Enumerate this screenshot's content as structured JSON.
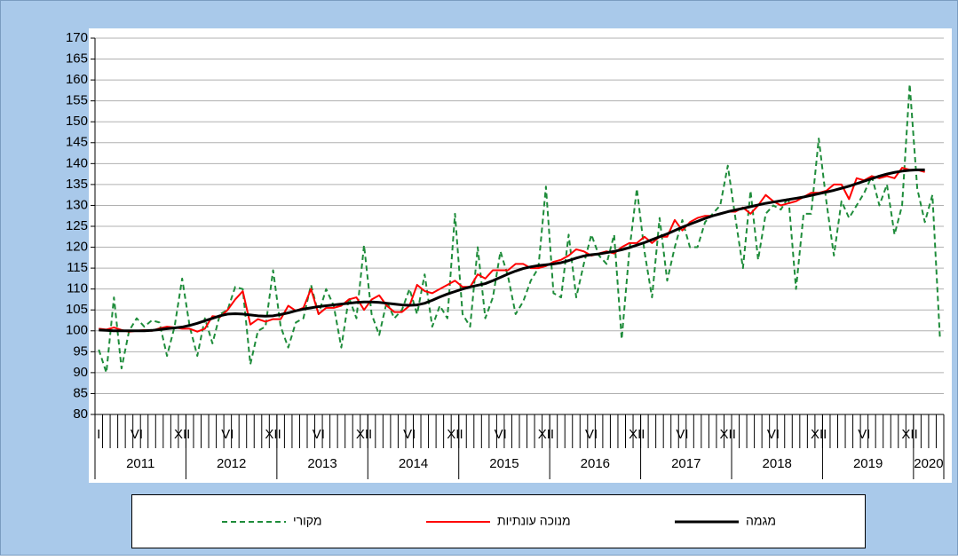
{
  "chart_data": {
    "type": "line",
    "categories": [
      "I",
      null,
      null,
      null,
      null,
      "VI",
      null,
      null,
      null,
      null,
      null,
      "XII",
      null,
      null,
      null,
      null,
      null,
      "VI",
      null,
      null,
      null,
      null,
      null,
      "XII",
      null,
      null,
      null,
      null,
      null,
      "VI",
      null,
      null,
      null,
      null,
      null,
      "XII",
      null,
      null,
      null,
      null,
      null,
      "VI",
      null,
      null,
      null,
      null,
      null,
      "XII",
      null,
      null,
      null,
      null,
      null,
      "VI",
      null,
      null,
      null,
      null,
      null,
      "XII",
      null,
      null,
      null,
      null,
      null,
      "VI",
      null,
      null,
      null,
      null,
      null,
      "XII",
      null,
      null,
      null,
      null,
      null,
      "VI",
      null,
      null,
      null,
      null,
      null,
      "XII",
      null,
      null,
      null,
      null,
      null,
      "VI",
      null,
      null,
      null,
      null,
      null,
      "XII",
      null,
      null,
      null,
      null,
      null,
      "VI",
      null,
      null,
      null,
      null,
      null,
      "XII",
      null,
      null,
      null,
      null
    ],
    "x_groups": [
      "2011",
      "2012",
      "2013",
      "2014",
      "2015",
      "2016",
      "2017",
      "2018",
      "2019",
      "2020"
    ],
    "series": [
      {
        "name": "מקורי",
        "color": "#1e8c3a",
        "dash": true,
        "values": [
          95.5,
          90,
          108,
          91,
          100,
          103,
          101,
          102.5,
          102,
          94,
          101,
          112.5,
          101,
          94,
          103,
          97,
          104,
          105,
          110.5,
          110,
          92,
          100,
          101,
          114.5,
          101,
          96,
          102,
          103,
          111,
          104,
          110,
          106,
          96,
          108,
          103,
          120.5,
          104,
          99,
          107,
          103,
          105,
          110,
          104,
          113.5,
          101,
          106,
          103,
          128,
          104,
          101,
          120,
          103,
          108,
          119,
          113,
          104,
          107,
          112,
          115,
          134.5,
          109,
          108,
          123,
          108,
          116,
          123,
          118,
          116,
          123,
          98,
          119,
          134,
          119,
          108,
          127,
          112,
          120,
          126.5,
          120,
          120,
          126,
          128,
          130,
          139.5,
          127,
          115,
          133.5,
          117,
          128,
          130,
          129,
          132,
          110,
          128,
          128,
          146,
          131,
          118,
          131,
          127,
          130,
          133,
          137,
          130,
          135,
          123,
          130,
          159,
          134,
          126,
          132.5,
          98
        ]
      },
      {
        "name": "מנוכה עונתיות",
        "color": "#ff0000",
        "dash": false,
        "values": [
          100.5,
          100.3,
          100.8,
          100.2,
          99.8,
          100,
          100.2,
          100,
          100.6,
          101,
          100.8,
          100.5,
          100.5,
          99.8,
          100.5,
          103.5,
          103.3,
          105,
          107.5,
          109.5,
          101.5,
          102.8,
          102.2,
          102.8,
          102.8,
          106,
          104.8,
          105.5,
          110,
          104,
          105.5,
          105.5,
          106,
          107.5,
          108,
          105,
          107.5,
          108.5,
          106,
          104.5,
          104.5,
          106,
          111,
          109.5,
          109,
          110,
          111,
          112,
          110.5,
          110.5,
          113.5,
          112.5,
          114.5,
          114.5,
          114.5,
          116,
          116,
          115,
          115,
          115.5,
          116.5,
          117,
          118,
          119.5,
          119,
          118,
          118.5,
          119,
          118.5,
          120,
          121,
          121,
          122.5,
          121,
          122.5,
          122.5,
          126.5,
          124,
          126,
          127,
          127.5,
          127.5,
          128,
          128.5,
          128.5,
          129.5,
          128,
          130,
          132.5,
          131,
          130,
          130.5,
          131,
          132,
          133,
          133,
          133.5,
          135,
          135,
          131.5,
          136.5,
          136,
          137,
          136.5,
          137,
          136.5,
          139,
          138.5,
          138.5,
          138,
          null,
          null
        ]
      },
      {
        "name": "מגמה",
        "color": "#000000",
        "dash": false,
        "values": [
          100.2,
          100.1,
          100,
          100,
          100,
          100,
          100,
          100.1,
          100.3,
          100.5,
          100.7,
          100.9,
          101.3,
          101.8,
          102.4,
          103,
          103.6,
          104,
          104.1,
          104,
          103.8,
          103.6,
          103.5,
          103.6,
          103.9,
          104.3,
          104.8,
          105.2,
          105.5,
          105.8,
          106,
          106.2,
          106.4,
          106.6,
          106.8,
          106.9,
          106.9,
          106.8,
          106.6,
          106.4,
          106.2,
          106.1,
          106.2,
          106.6,
          107.3,
          108.1,
          108.8,
          109.4,
          110,
          110.5,
          110.9,
          111.3,
          112,
          112.8,
          113.6,
          114.3,
          114.9,
          115.3,
          115.6,
          115.8,
          116,
          116.3,
          116.8,
          117.4,
          117.9,
          118.2,
          118.4,
          118.7,
          119,
          119.4,
          119.9,
          120.5,
          121.1,
          121.8,
          122.5,
          123.2,
          124,
          124.8,
          125.5,
          126.2,
          126.9,
          127.5,
          128,
          128.5,
          128.9,
          129.3,
          129.7,
          130.1,
          130.5,
          130.8,
          131.1,
          131.4,
          131.7,
          132,
          132.4,
          132.8,
          133.2,
          133.6,
          134.1,
          134.6,
          135.2,
          135.8,
          136.4,
          137,
          137.5,
          137.9,
          138.2,
          138.4,
          138.5,
          138.5,
          null,
          null
        ]
      }
    ],
    "ylim": [
      80,
      170
    ],
    "yticks": [
      80,
      85,
      90,
      95,
      100,
      105,
      110,
      115,
      120,
      125,
      130,
      135,
      140,
      145,
      150,
      155,
      160,
      165,
      170
    ],
    "grid": true
  }
}
